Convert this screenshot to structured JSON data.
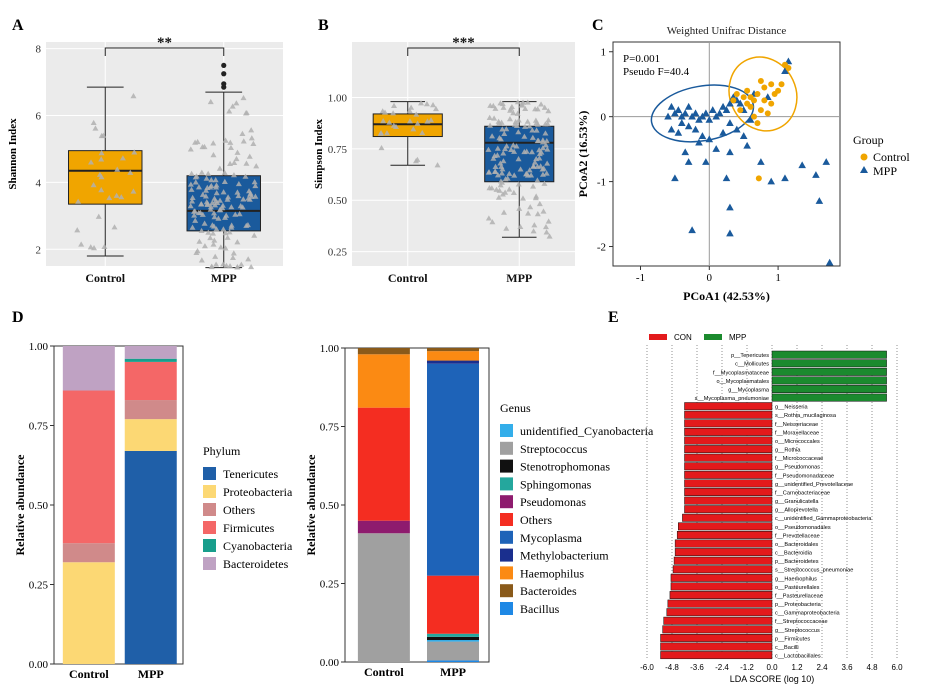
{
  "colors": {
    "control": "#F0A500",
    "mpp": "#1A5A9C",
    "panel_bg": "#EBEBEB",
    "con_bar": "#E31A1C",
    "mpp_bar": "#1B8A2E"
  },
  "chart_data": [
    {
      "panel": "A",
      "type": "box",
      "title": "",
      "xlabel": "",
      "ylabel": "Shannon Index",
      "categories": [
        "Control",
        "MPP"
      ],
      "ylim": [
        1.5,
        8.2
      ],
      "yticks": [
        2,
        4,
        6,
        8
      ],
      "boxes": [
        {
          "name": "Control",
          "whisker_low": 1.8,
          "q1": 3.35,
          "median": 4.35,
          "q3": 4.95,
          "whisker_high": 6.85,
          "outliers": []
        },
        {
          "name": "MPP",
          "whisker_low": 1.45,
          "q1": 2.55,
          "median": 3.15,
          "q3": 4.2,
          "whisker_high": 6.7,
          "outliers": [
            6.85,
            6.95,
            7.25,
            7.5
          ]
        }
      ],
      "significance": "**"
    },
    {
      "panel": "B",
      "type": "box",
      "title": "",
      "xlabel": "",
      "ylabel": "Simpson Index",
      "categories": [
        "Control",
        "MPP"
      ],
      "ylim": [
        0.18,
        1.27
      ],
      "yticks": [
        0.25,
        0.5,
        0.75,
        1.0
      ],
      "ytick_labels": [
        "0.25",
        "0.50",
        "0.75",
        "1.00"
      ],
      "boxes": [
        {
          "name": "Control",
          "whisker_low": 0.67,
          "q1": 0.81,
          "median": 0.87,
          "q3": 0.92,
          "whisker_high": 0.98,
          "outliers": []
        },
        {
          "name": "MPP",
          "whisker_low": 0.32,
          "q1": 0.59,
          "median": 0.78,
          "q3": 0.86,
          "whisker_high": 0.98,
          "outliers": []
        }
      ],
      "significance": "***"
    },
    {
      "panel": "C",
      "type": "scatter",
      "title": "Weighted Unifrac Distance",
      "xlabel": "PCoA1 (42.53%)",
      "ylabel": "PCoA2 (16.53%)",
      "xlim": [
        -1.4,
        1.9
      ],
      "ylim": [
        -2.3,
        1.15
      ],
      "xticks": [
        -1,
        0,
        1
      ],
      "yticks": [
        -2,
        -1,
        0,
        1
      ],
      "annotations": [
        "P=0.001",
        "Pseudo F=40.4"
      ],
      "legend_title": "Group",
      "series": [
        {
          "name": "Control",
          "points": [
            [
              0.4,
              0.35
            ],
            [
              0.5,
              0.3
            ],
            [
              0.55,
              0.2
            ],
            [
              0.6,
              0.3
            ],
            [
              0.7,
              0.35
            ],
            [
              0.75,
              0.1
            ],
            [
              0.8,
              0.25
            ],
            [
              0.85,
              0.05
            ],
            [
              0.9,
              0.2
            ],
            [
              0.95,
              0.35
            ],
            [
              1.0,
              0.4
            ],
            [
              1.05,
              0.5
            ],
            [
              1.1,
              0.8
            ],
            [
              0.65,
              0.0
            ],
            [
              0.7,
              -0.1
            ],
            [
              0.6,
              0.15
            ],
            [
              0.45,
              0.1
            ],
            [
              0.8,
              0.45
            ],
            [
              0.9,
              0.5
            ],
            [
              0.75,
              0.55
            ],
            [
              0.55,
              0.4
            ],
            [
              1.15,
              0.75
            ],
            [
              0.35,
              0.25
            ],
            [
              0.65,
              0.25
            ],
            [
              0.72,
              -0.95
            ]
          ]
        },
        {
          "name": "MPP",
          "points": [
            [
              -0.55,
              0.15
            ],
            [
              -0.5,
              0.05
            ],
            [
              -0.45,
              0.1
            ],
            [
              -0.4,
              0.0
            ],
            [
              -0.35,
              0.05
            ],
            [
              -0.3,
              0.15
            ],
            [
              -0.25,
              0.0
            ],
            [
              -0.2,
              0.05
            ],
            [
              -0.15,
              -0.05
            ],
            [
              -0.1,
              0.0
            ],
            [
              -0.05,
              0.05
            ],
            [
              0.0,
              -0.05
            ],
            [
              0.05,
              0.1
            ],
            [
              0.1,
              0.0
            ],
            [
              0.15,
              0.05
            ],
            [
              0.2,
              0.15
            ],
            [
              0.25,
              0.1
            ],
            [
              0.3,
              0.2
            ],
            [
              0.35,
              0.3
            ],
            [
              0.4,
              0.25
            ],
            [
              0.45,
              0.2
            ],
            [
              0.5,
              0.1
            ],
            [
              -0.6,
              0.0
            ],
            [
              -0.4,
              -0.1
            ],
            [
              -0.3,
              -0.15
            ],
            [
              -0.2,
              -0.2
            ],
            [
              -0.1,
              -0.3
            ],
            [
              0.0,
              -0.35
            ],
            [
              0.2,
              -0.25
            ],
            [
              0.3,
              -0.1
            ],
            [
              0.4,
              -0.2
            ],
            [
              0.5,
              -0.3
            ],
            [
              0.6,
              -0.05
            ],
            [
              -0.45,
              -0.25
            ],
            [
              -0.55,
              -0.2
            ],
            [
              -0.15,
              -0.4
            ],
            [
              0.1,
              -0.5
            ],
            [
              0.3,
              -0.55
            ],
            [
              -0.3,
              -0.7
            ],
            [
              -0.05,
              -0.7
            ],
            [
              0.55,
              -0.45
            ],
            [
              -0.35,
              -0.55
            ],
            [
              -0.5,
              -0.95
            ],
            [
              0.25,
              -0.95
            ],
            [
              0.75,
              -0.7
            ],
            [
              0.9,
              -1.0
            ],
            [
              1.1,
              -0.95
            ],
            [
              1.35,
              -0.75
            ],
            [
              1.55,
              -0.9
            ],
            [
              1.7,
              -0.7
            ],
            [
              0.3,
              -1.4
            ],
            [
              -0.25,
              -1.75
            ],
            [
              0.3,
              -1.8
            ],
            [
              1.6,
              -1.3
            ],
            [
              1.75,
              -2.25
            ],
            [
              1.15,
              0.85
            ],
            [
              1.1,
              0.7
            ],
            [
              0.65,
              0.35
            ],
            [
              0.85,
              0.3
            ]
          ]
        }
      ]
    },
    {
      "panel": "D-left",
      "type": "bar",
      "subtype": "stacked",
      "title": "",
      "xlabel": "",
      "ylabel": "Relative abundance",
      "categories": [
        "Control",
        "MPP"
      ],
      "ylim": [
        0,
        1
      ],
      "yticks": [
        "0.00",
        "0.25",
        "0.50",
        "0.75",
        "1.00"
      ],
      "legend_title": "Phylum",
      "series": [
        {
          "name": "Tenericutes",
          "color": "#1F5FA8",
          "values": [
            0.0,
            0.67
          ]
        },
        {
          "name": "Proteobacteria",
          "color": "#FCD874",
          "values": [
            0.32,
            0.1
          ]
        },
        {
          "name": "Others",
          "color": "#D08A8A",
          "values": [
            0.06,
            0.06
          ]
        },
        {
          "name": "Firmicutes",
          "color": "#F46767",
          "values": [
            0.48,
            0.12
          ]
        },
        {
          "name": "Cyanobacteria",
          "color": "#189E8C",
          "values": [
            0.0,
            0.01
          ]
        },
        {
          "name": "Bacteroidetes",
          "color": "#BFA2C3",
          "values": [
            0.14,
            0.04
          ]
        }
      ]
    },
    {
      "panel": "D-right",
      "type": "bar",
      "subtype": "stacked",
      "title": "",
      "xlabel": "",
      "ylabel": "Relative abundance",
      "categories": [
        "Control",
        "MPP"
      ],
      "ylim": [
        0,
        1
      ],
      "yticks": [
        "0.00",
        "0.25",
        "0.50",
        "0.75",
        "1.00"
      ],
      "legend_title": "Genus",
      "legend_order": [
        "unidentified_Cyanobacteria",
        "Streptococcus",
        "Stenotrophomonas",
        "Sphingomonas",
        "Pseudomonas",
        "Others",
        "Mycoplasma",
        "Methylobacterium",
        "Haemophilus",
        "Bacteroides",
        "Bacillus"
      ],
      "series": [
        {
          "name": "Bacillus",
          "color": "#1E88E5",
          "values": [
            0.0,
            0.005
          ]
        },
        {
          "name": "Streptococcus",
          "color": "#A0A0A0",
          "values": [
            0.41,
            0.06
          ]
        },
        {
          "name": "unidentified_Cyanobacteria",
          "color": "#33AEEA",
          "values": [
            0.0,
            0.005
          ]
        },
        {
          "name": "Stenotrophomonas",
          "color": "#111111",
          "values": [
            0.0,
            0.01
          ]
        },
        {
          "name": "Sphingomonas",
          "color": "#24A79D",
          "values": [
            0.0,
            0.01
          ]
        },
        {
          "name": "Pseudomonas",
          "color": "#8E1B6E",
          "values": [
            0.04,
            0.0
          ]
        },
        {
          "name": "Others",
          "color": "#F42D21",
          "values": [
            0.36,
            0.185
          ]
        },
        {
          "name": "Mycoplasma",
          "color": "#1E63B8",
          "values": [
            0.0,
            0.675
          ]
        },
        {
          "name": "Methylobacterium",
          "color": "#1A2F8E",
          "values": [
            0.0,
            0.01
          ]
        },
        {
          "name": "Haemophilus",
          "color": "#FB8A13",
          "values": [
            0.17,
            0.03
          ]
        },
        {
          "name": "Bacteroides",
          "color": "#8A5A1A",
          "values": [
            0.02,
            0.01
          ]
        }
      ]
    },
    {
      "panel": "E",
      "type": "bar",
      "subtype": "horizontal-diverging",
      "title": "",
      "xlabel": "LDA SCORE (log 10)",
      "ylabel": "",
      "xlim": [
        -6,
        6
      ],
      "xticks": [
        "-6.0",
        "-4.8",
        "-3.6",
        "-2.4",
        "-1.2",
        "0.0",
        "1.2",
        "2.4",
        "3.6",
        "4.8",
        "6.0"
      ],
      "legend": [
        "CON",
        "MPP"
      ],
      "taxa": [
        {
          "label": "p__Tenericutes",
          "group": "MPP",
          "value": 5.5
        },
        {
          "label": "c__Mollicutes",
          "group": "MPP",
          "value": 5.5
        },
        {
          "label": "f__Mycoplasmataceae",
          "group": "MPP",
          "value": 5.5
        },
        {
          "label": "o__Mycoplasmatales",
          "group": "MPP",
          "value": 5.5
        },
        {
          "label": "g__Mycoplasma",
          "group": "MPP",
          "value": 5.5
        },
        {
          "label": "s__Mycoplasma_pneumoniae",
          "group": "MPP",
          "value": 5.5
        },
        {
          "label": "g__Neisseria",
          "group": "CON",
          "value": -4.2
        },
        {
          "label": "s__Rothia_mucilaginosa",
          "group": "CON",
          "value": -4.2
        },
        {
          "label": "f__Neisseriaceae",
          "group": "CON",
          "value": -4.2
        },
        {
          "label": "f__Moraxellaceae",
          "group": "CON",
          "value": -4.2
        },
        {
          "label": "o__Micrococcales",
          "group": "CON",
          "value": -4.2
        },
        {
          "label": "g__Rothia",
          "group": "CON",
          "value": -4.2
        },
        {
          "label": "f__Micrococcaceae",
          "group": "CON",
          "value": -4.2
        },
        {
          "label": "g__Pseudomonas",
          "group": "CON",
          "value": -4.2
        },
        {
          "label": "f__Pseudomonadaceae",
          "group": "CON",
          "value": -4.2
        },
        {
          "label": "g__unidentified_Prevotellaceae",
          "group": "CON",
          "value": -4.2
        },
        {
          "label": "f__Carnobacteriaceae",
          "group": "CON",
          "value": -4.2
        },
        {
          "label": "g__Granulicatella",
          "group": "CON",
          "value": -4.2
        },
        {
          "label": "g__Alloprevotella",
          "group": "CON",
          "value": -4.2
        },
        {
          "label": "c__unidentified_Gammaproteobacteria",
          "group": "CON",
          "value": -4.3
        },
        {
          "label": "o__Pseudomonadales",
          "group": "CON",
          "value": -4.5
        },
        {
          "label": "f__Prevotellaceae",
          "group": "CON",
          "value": -4.55
        },
        {
          "label": "o__Bacteroidales",
          "group": "CON",
          "value": -4.65
        },
        {
          "label": "c__Bacteroidia",
          "group": "CON",
          "value": -4.65
        },
        {
          "label": "p__Bacteroidetes",
          "group": "CON",
          "value": -4.7
        },
        {
          "label": "s__Streptococcus_pneumoniae",
          "group": "CON",
          "value": -4.75
        },
        {
          "label": "g__Haemophilus",
          "group": "CON",
          "value": -4.85
        },
        {
          "label": "o__Pasteurellales",
          "group": "CON",
          "value": -4.85
        },
        {
          "label": "f__Pasteurellaceae",
          "group": "CON",
          "value": -4.9
        },
        {
          "label": "p__Proteobacteria",
          "group": "CON",
          "value": -5.0
        },
        {
          "label": "c__Gammaproteobacteria",
          "group": "CON",
          "value": -5.05
        },
        {
          "label": "f__Streptococcaceae",
          "group": "CON",
          "value": -5.2
        },
        {
          "label": "g__Streptococcus",
          "group": "CON",
          "value": -5.25
        },
        {
          "label": "p__Firmicutes",
          "group": "CON",
          "value": -5.35
        },
        {
          "label": "c__Bacilli",
          "group": "CON",
          "value": -5.35
        },
        {
          "label": "c__Lactobacillales",
          "group": "CON",
          "value": -5.35
        }
      ]
    }
  ],
  "labels": {
    "panel_A": "A",
    "panel_B": "B",
    "panel_C": "C",
    "panel_D": "D",
    "panel_E": "E",
    "group_title": "Group"
  }
}
